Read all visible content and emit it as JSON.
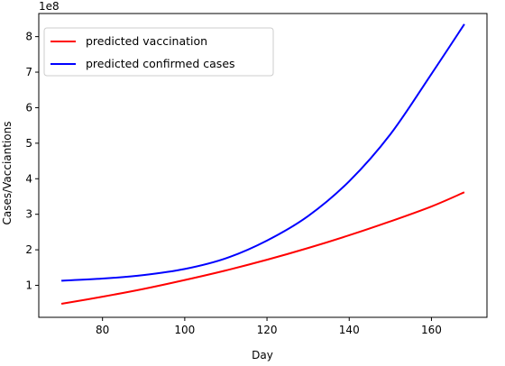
{
  "chart_data": {
    "type": "line",
    "xlabel": "Day",
    "ylabel": "Cases/Vacciantions",
    "y_scale_label": "1e8",
    "xlim": [
      64.5,
      173.5
    ],
    "ylim": [
      0.1,
      8.65
    ],
    "xticks": [
      80,
      100,
      120,
      140,
      160
    ],
    "yticks": [
      1,
      2,
      3,
      4,
      5,
      6,
      7,
      8
    ],
    "grid": false,
    "legend_position": "top-left",
    "x": [
      70,
      80,
      90,
      100,
      110,
      120,
      130,
      140,
      150,
      160,
      168
    ],
    "series": [
      {
        "name": "predicted vaccination",
        "color": "#ff0000",
        "values": [
          0.48,
          0.68,
          0.9,
          1.15,
          1.42,
          1.72,
          2.05,
          2.41,
          2.8,
          3.22,
          3.62
        ]
      },
      {
        "name": "predicted confirmed cases",
        "color": "#0000ff",
        "values": [
          1.13,
          1.19,
          1.29,
          1.46,
          1.76,
          2.26,
          2.95,
          3.93,
          5.25,
          6.95,
          8.35
        ]
      }
    ]
  }
}
